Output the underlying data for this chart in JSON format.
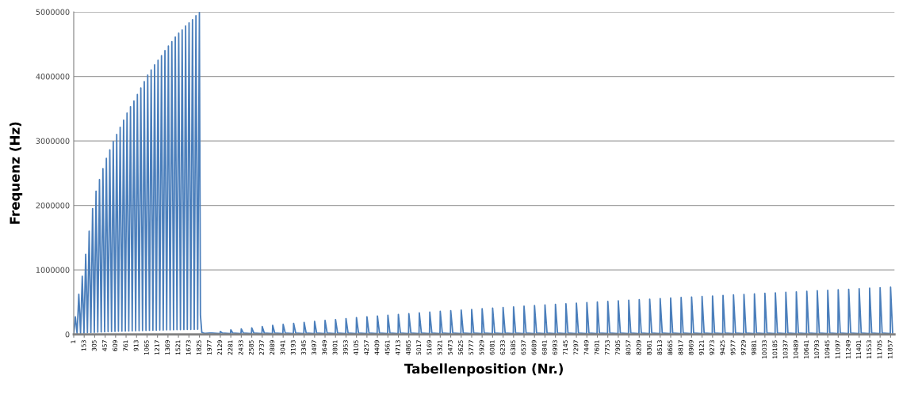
{
  "chart_data": {
    "type": "line",
    "xlabel": "Tabellenposition (Nr.)",
    "ylabel": "Frequenz (Hz)",
    "xlim": [
      1,
      11914
    ],
    "ylim": [
      0,
      5000000
    ],
    "xticks": [
      1,
      153,
      305,
      457,
      609,
      761,
      913,
      1065,
      1217,
      1369,
      1521,
      1673,
      1825,
      1977,
      2129,
      2281,
      2433,
      2585,
      2737,
      2889,
      3041,
      3193,
      3345,
      3497,
      3649,
      3801,
      3953,
      4105,
      4257,
      4409,
      4561,
      4713,
      4865,
      5017,
      5169,
      5321,
      5473,
      5625,
      5777,
      5929,
      6081,
      6233,
      6385,
      6537,
      6689,
      6841,
      6993,
      7145,
      7297,
      7449,
      7601,
      7753,
      7905,
      8057,
      8209,
      8361,
      8513,
      8665,
      8817,
      8969,
      9121,
      9273,
      9425,
      9577,
      9729,
      9881,
      10033,
      10185,
      10337,
      10489,
      10641,
      10793,
      10945,
      11097,
      11249,
      11401,
      11553,
      11705,
      11857
    ],
    "yticks": [
      0,
      1000000,
      2000000,
      3000000,
      4000000,
      5000000
    ],
    "grid": "y",
    "marker": "none",
    "line_style": "solid",
    "series": [
      {
        "color": "#4a7ebb",
        "x": [
          1,
          25,
          50,
          75,
          100,
          125,
          150,
          175,
          200,
          225,
          250,
          275,
          300,
          325,
          350,
          375,
          400,
          425,
          450,
          475,
          500,
          525,
          550,
          575,
          600,
          625,
          650,
          675,
          700,
          725,
          750,
          775,
          800,
          825,
          850,
          875,
          900,
          925,
          950,
          975,
          1000,
          1025,
          1050,
          1075,
          1100,
          1125,
          1150,
          1175,
          1200,
          1225,
          1250,
          1275,
          1300,
          1325,
          1350,
          1375,
          1400,
          1425,
          1450,
          1475,
          1500,
          1525,
          1550,
          1575,
          1600,
          1625,
          1650,
          1675,
          1700,
          1725,
          1750,
          1775,
          1800,
          1825,
          1840,
          1860,
          1900,
          1977,
          2007,
          2125,
          2129,
          2159,
          2277,
          2281,
          2311,
          2429,
          2433,
          2463,
          2581,
          2585,
          2615,
          2733,
          2737,
          2767,
          2885,
          2889,
          2919,
          3037,
          3041,
          3071,
          3189,
          3193,
          3223,
          3341,
          3345,
          3375,
          3493,
          3497,
          3527,
          3645,
          3649,
          3679,
          3797,
          3801,
          3831,
          3949,
          3953,
          3983,
          4101,
          4105,
          4135,
          4253,
          4257,
          4287,
          4405,
          4409,
          4439,
          4557,
          4561,
          4591,
          4709,
          4713,
          4743,
          4861,
          4865,
          4895,
          5013,
          5017,
          5047,
          5165,
          5169,
          5199,
          5317,
          5321,
          5351,
          5469,
          5473,
          5503,
          5621,
          5625,
          5655,
          5773,
          5777,
          5807,
          5925,
          5929,
          5959,
          6077,
          6081,
          6111,
          6229,
          6233,
          6263,
          6381,
          6385,
          6415,
          6533,
          6537,
          6567,
          6685,
          6689,
          6719,
          6837,
          6841,
          6871,
          6989,
          6993,
          7023,
          7141,
          7145,
          7175,
          7293,
          7297,
          7327,
          7445,
          7449,
          7479,
          7597,
          7601,
          7631,
          7749,
          7753,
          7783,
          7901,
          7905,
          7935,
          8053,
          8057,
          8087,
          8205,
          8209,
          8239,
          8357,
          8361,
          8391,
          8509,
          8513,
          8543,
          8661,
          8665,
          8695,
          8813,
          8817,
          8847,
          8965,
          8969,
          8999,
          9117,
          9121,
          9151,
          9269,
          9273,
          9303,
          9421,
          9425,
          9455,
          9573,
          9577,
          9607,
          9725,
          9729,
          9759,
          9877,
          9881,
          9911,
          10029,
          10033,
          10063,
          10181,
          10185,
          10215,
          10333,
          10337,
          10367,
          10485,
          10489,
          10519,
          10637,
          10641,
          10671,
          10789,
          10793,
          10823,
          10941,
          10945,
          10975,
          11093,
          11097,
          11127,
          11245,
          11249,
          11279,
          11397,
          11401,
          11431,
          11549,
          11553,
          11583,
          11701,
          11705,
          11735,
          11853,
          11857,
          11887
        ],
        "values": [
          0,
          270000,
          10000,
          620000,
          15000,
          900000,
          20000,
          1240000,
          24000,
          1600000,
          28000,
          1950000,
          31000,
          2220000,
          34000,
          2400000,
          37000,
          2570000,
          40000,
          2730000,
          42000,
          2860000,
          44000,
          2990000,
          46000,
          3100000,
          48000,
          3210000,
          50000,
          3320000,
          52000,
          3430000,
          54000,
          3530000,
          55000,
          3620000,
          57000,
          3720000,
          58000,
          3820000,
          60000,
          3920000,
          61000,
          4020000,
          63000,
          4100000,
          64000,
          4180000,
          66000,
          4250000,
          67000,
          4320000,
          68000,
          4400000,
          70000,
          4470000,
          71000,
          4540000,
          72000,
          4610000,
          73000,
          4670000,
          74000,
          4720000,
          75000,
          4780000,
          76000,
          4830000,
          77000,
          4880000,
          78000,
          4940000,
          80000,
          4990000,
          300000,
          30000,
          15000,
          20000,
          20000,
          12000,
          45000,
          20000,
          12000,
          70000,
          20000,
          12000,
          85000,
          20000,
          12000,
          100000,
          20000,
          12000,
          120000,
          20000,
          12000,
          140000,
          20000,
          12000,
          155000,
          20000,
          12000,
          170000,
          20000,
          12000,
          185000,
          20000,
          12000,
          200000,
          20000,
          12000,
          215000,
          20000,
          12000,
          230000,
          20000,
          12000,
          245000,
          20000,
          12000,
          260000,
          20000,
          12000,
          272000,
          20000,
          12000,
          284000,
          20000,
          12000,
          296000,
          20000,
          12000,
          308000,
          20000,
          12000,
          320000,
          20000,
          12000,
          332000,
          20000,
          12000,
          344000,
          20000,
          12000,
          356000,
          20000,
          12000,
          366000,
          20000,
          12000,
          376000,
          20000,
          12000,
          386000,
          20000,
          12000,
          396000,
          20000,
          12000,
          406000,
          20000,
          12000,
          416000,
          20000,
          12000,
          426000,
          20000,
          12000,
          436000,
          20000,
          12000,
          446000,
          20000,
          12000,
          456000,
          20000,
          12000,
          465000,
          20000,
          12000,
          474000,
          20000,
          12000,
          483000,
          20000,
          12000,
          492000,
          20000,
          12000,
          501000,
          20000,
          12000,
          510000,
          20000,
          12000,
          519000,
          20000,
          12000,
          528000,
          20000,
          12000,
          537000,
          20000,
          12000,
          546000,
          20000,
          12000,
          555000,
          20000,
          12000,
          563000,
          20000,
          12000,
          571000,
          20000,
          12000,
          579000,
          20000,
          12000,
          587000,
          20000,
          12000,
          595000,
          20000,
          12000,
          603000,
          20000,
          12000,
          611000,
          20000,
          12000,
          619000,
          20000,
          12000,
          627000,
          20000,
          12000,
          635000,
          20000,
          12000,
          643000,
          20000,
          12000,
          651000,
          20000,
          12000,
          659000,
          20000,
          12000,
          667000,
          20000,
          12000,
          675000,
          20000,
          12000,
          683000,
          20000,
          12000,
          691000,
          20000,
          12000,
          699000,
          20000,
          12000,
          707000,
          20000,
          12000,
          715000,
          20000,
          12000,
          723000,
          20000,
          12000,
          731000,
          20000
        ]
      }
    ]
  }
}
